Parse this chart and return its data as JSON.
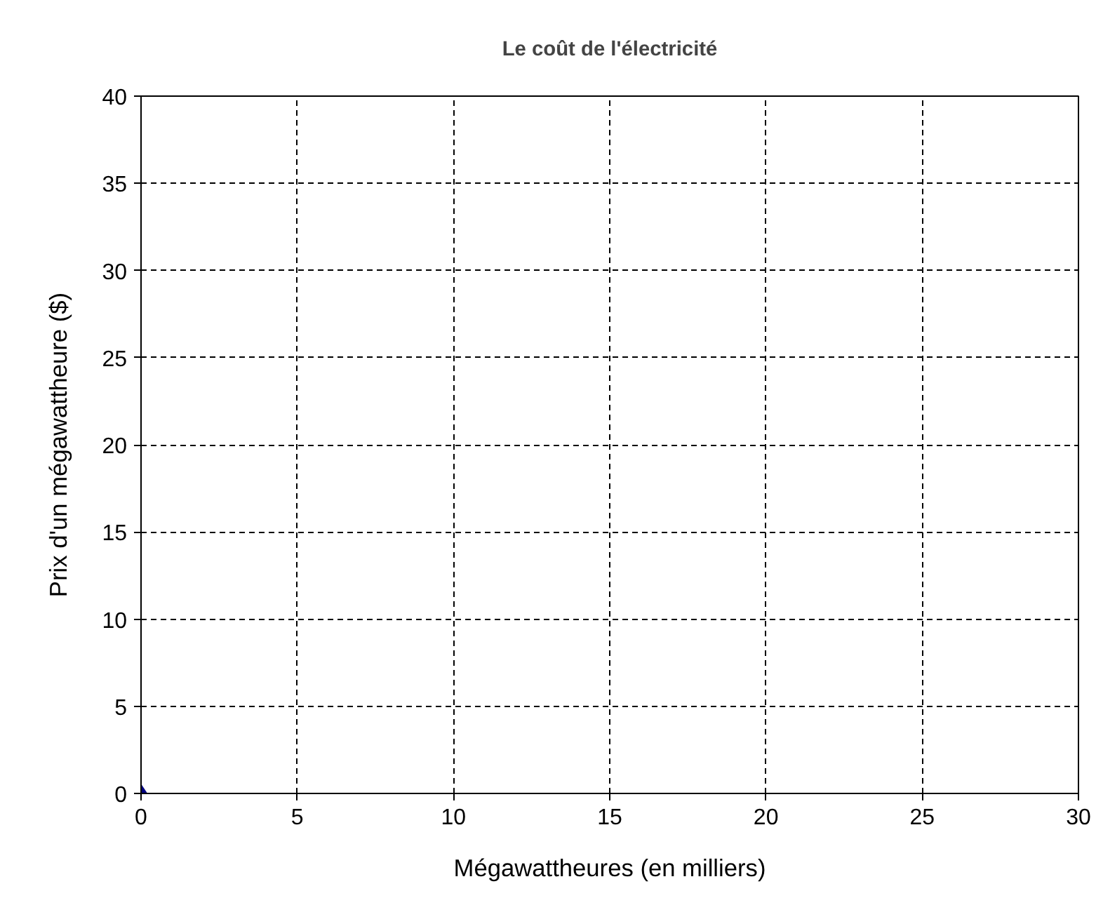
{
  "chart_data": {
    "type": "scatter",
    "title": "Le coût de l'électricité",
    "xlabel": "Mégawattheures (en milliers)",
    "ylabel": "Prix d'un mégawattheure ($)",
    "x": [
      0
    ],
    "values": [
      0
    ],
    "color": "#000080",
    "marker": "diamond",
    "xlim": [
      0,
      30
    ],
    "ylim": [
      0,
      40
    ],
    "xticks": [
      0,
      5,
      10,
      15,
      20,
      25,
      30
    ],
    "yticks": [
      0,
      5,
      10,
      15,
      20,
      25,
      30,
      35,
      40
    ],
    "grid": true
  }
}
